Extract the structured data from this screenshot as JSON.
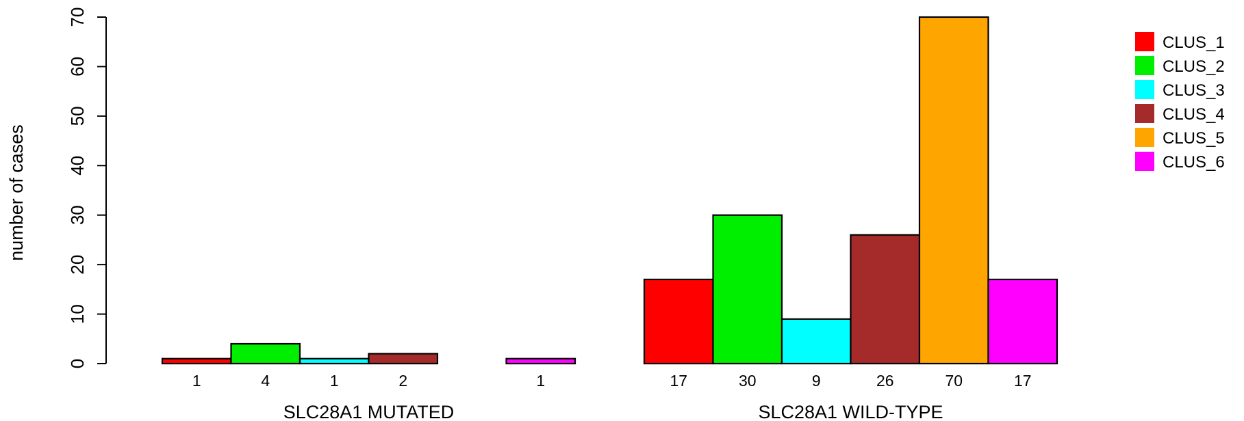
{
  "chart_data": {
    "type": "bar",
    "title": "",
    "xlabel": "",
    "ylabel": "number of cases",
    "ylim": [
      0,
      70
    ],
    "yticks": [
      0,
      10,
      20,
      30,
      40,
      50,
      60,
      70
    ],
    "grid": false,
    "legend_position": "right",
    "groups": [
      {
        "label": "SLC28A1 MUTATED",
        "values": [
          1,
          4,
          1,
          2,
          0,
          1
        ],
        "count_labels": [
          "1",
          "4",
          "1",
          "2",
          "",
          "1"
        ]
      },
      {
        "label": "SLC28A1 WILD-TYPE",
        "values": [
          17,
          30,
          9,
          26,
          70,
          17
        ],
        "count_labels": [
          "17",
          "30",
          "9",
          "26",
          "70",
          "17"
        ]
      }
    ],
    "series": [
      {
        "name": "CLUS_1",
        "color": "#ff0000"
      },
      {
        "name": "CLUS_2",
        "color": "#00ee00"
      },
      {
        "name": "CLUS_3",
        "color": "#00ffff"
      },
      {
        "name": "CLUS_4",
        "color": "#a52a2a"
      },
      {
        "name": "CLUS_5",
        "color": "#ffa500"
      },
      {
        "name": "CLUS_6",
        "color": "#ff00ff"
      }
    ]
  }
}
